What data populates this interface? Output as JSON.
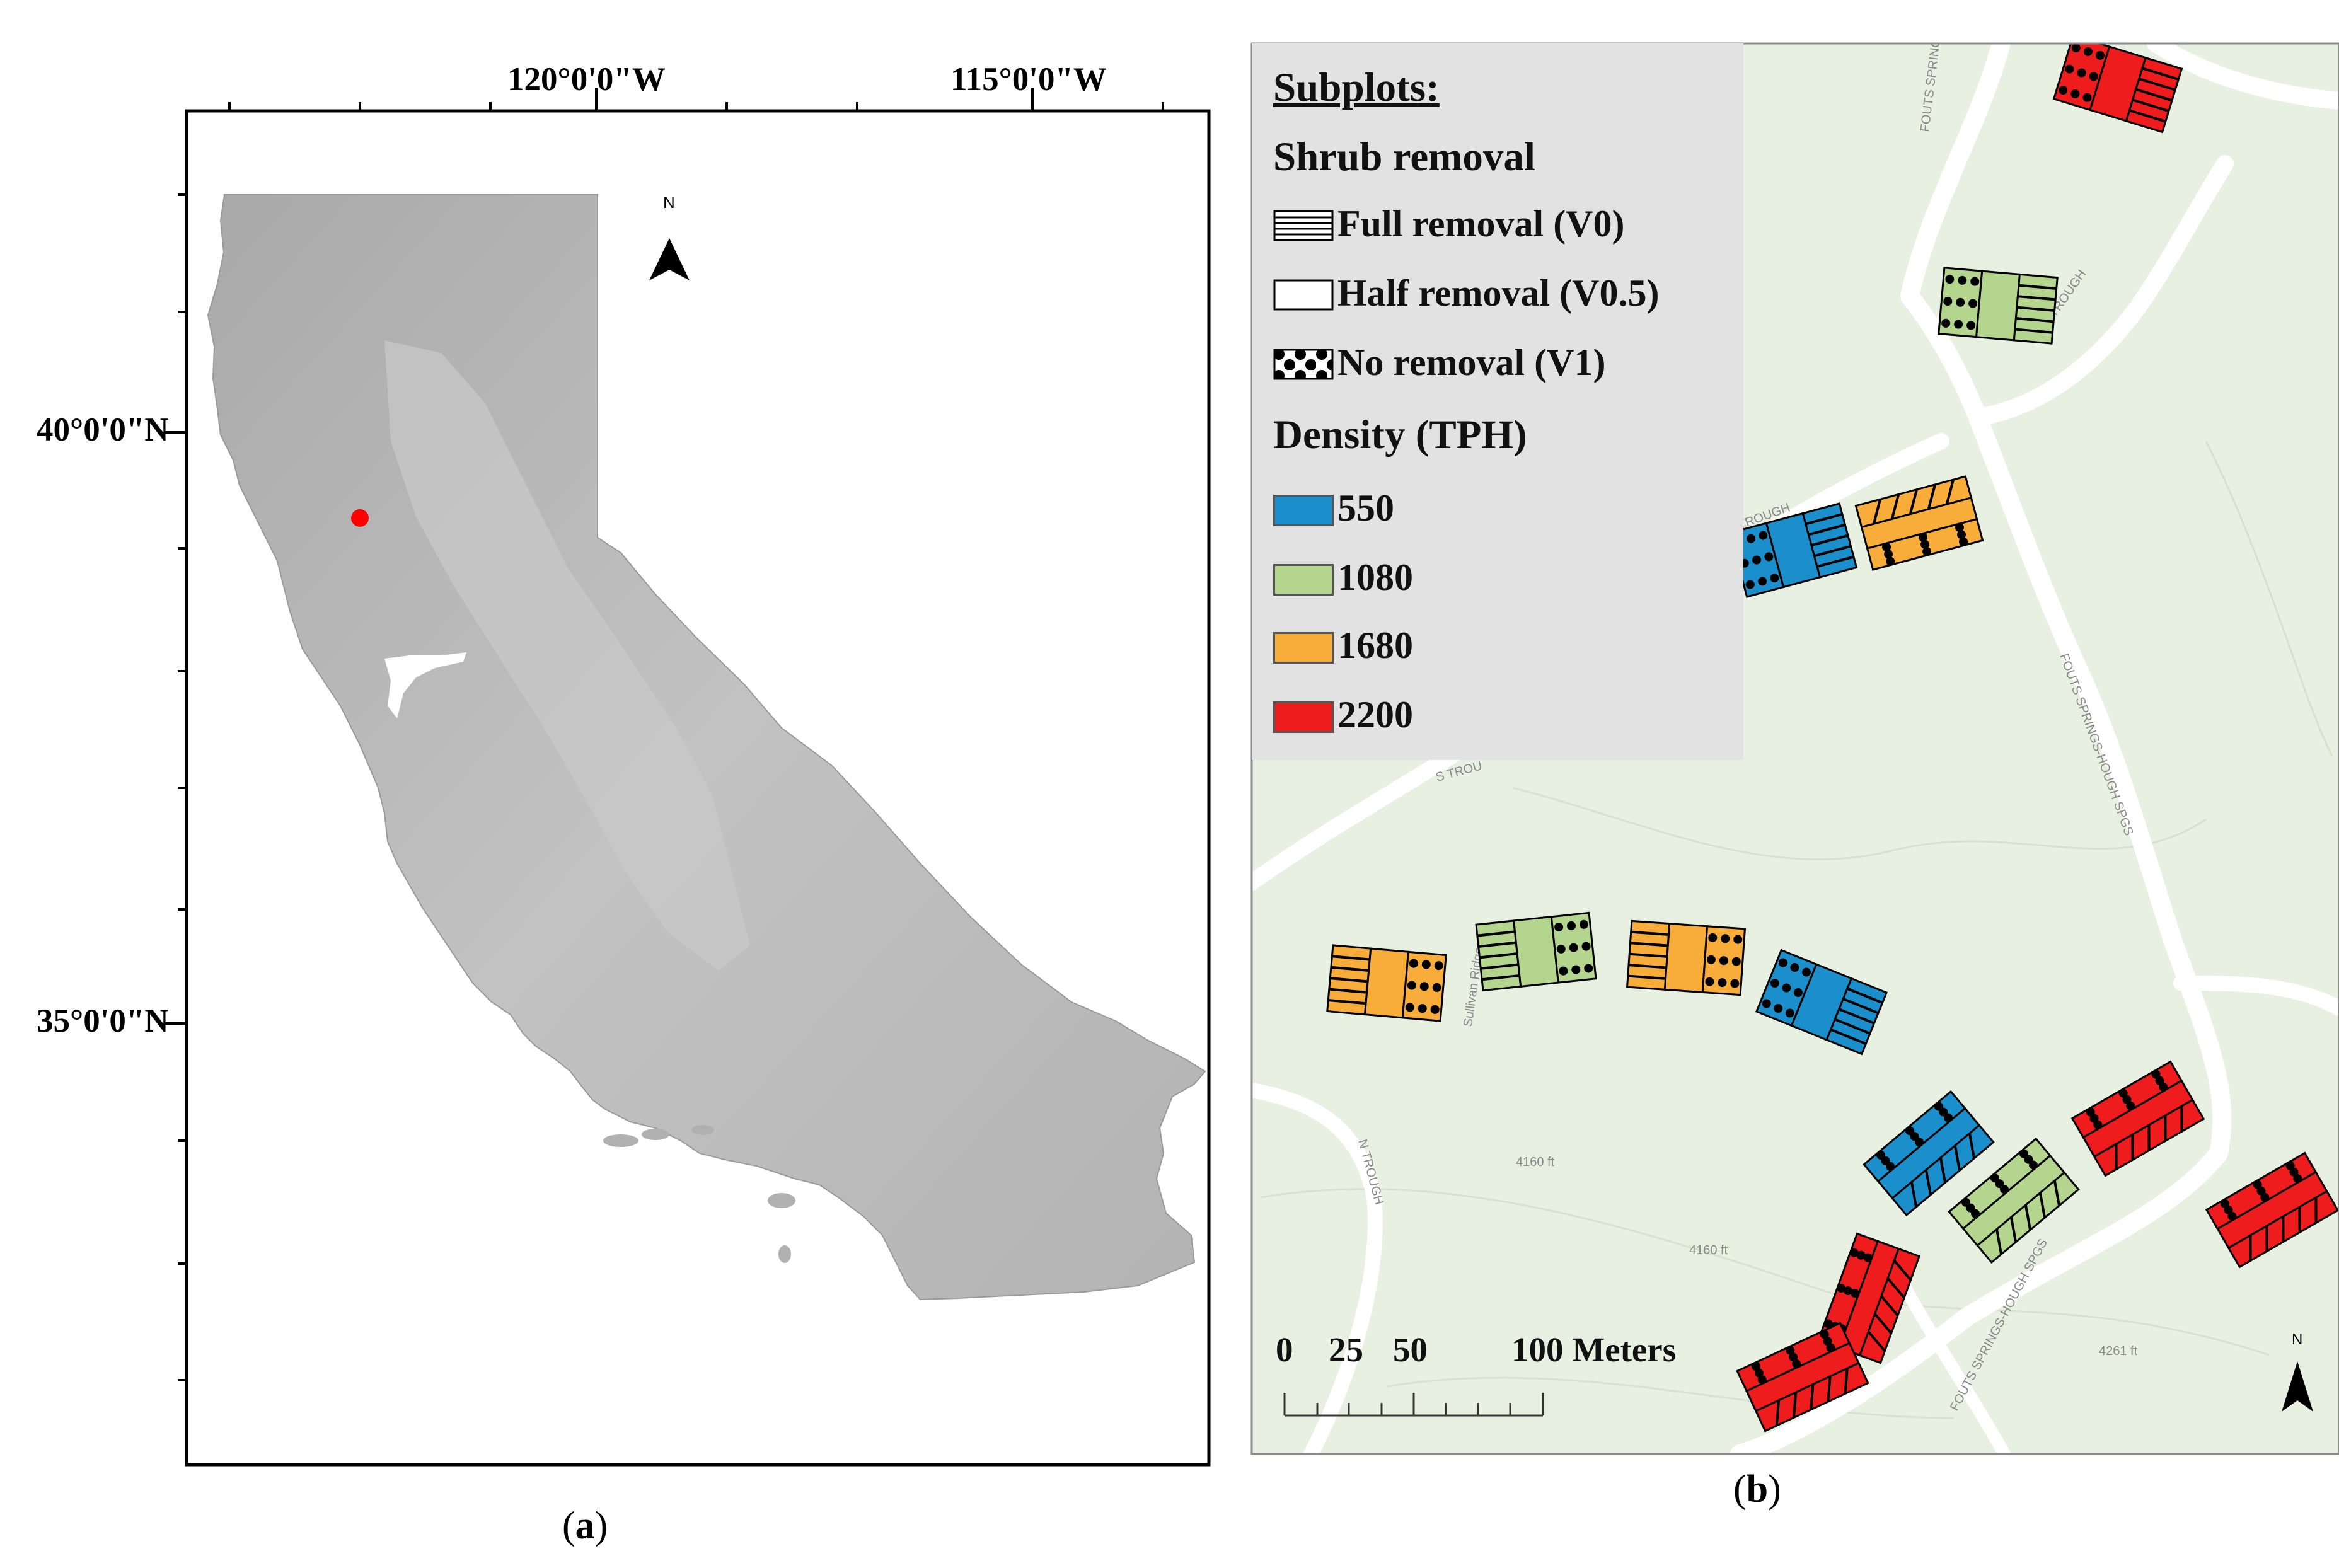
{
  "panel_a": {
    "caption_open": "(",
    "caption_letter": "a",
    "caption_close": ")",
    "longitude_labels": [
      "120°0'0\"W",
      "115°0'0\"W"
    ],
    "latitude_labels": [
      "40°0'0\"N",
      "35°0'0\"N"
    ],
    "north_label": "N",
    "site_marker_color": "#ff0000",
    "map_description_icon": "california-hillshade"
  },
  "panel_b": {
    "caption_open": "(",
    "caption_letter": "b",
    "caption_close": ")",
    "legend": {
      "title": "Subplots:",
      "shrub_heading": "Shrub removal",
      "shrub_items": [
        {
          "label": "Full removal (V0)",
          "pattern": "horizontal-lines"
        },
        {
          "label": "Half removal (V0.5)",
          "pattern": "blank"
        },
        {
          "label": "No removal (V1)",
          "pattern": "dots"
        }
      ],
      "density_heading": "Density (TPH)",
      "density_items": [
        {
          "label": "550",
          "color": "#1a8fcb"
        },
        {
          "label": "1080",
          "color": "#b4d58e"
        },
        {
          "label": "1680",
          "color": "#f8ad3b"
        },
        {
          "label": "2200",
          "color": "#ee1c1c"
        }
      ]
    },
    "road_labels": [
      "FOUTS SPRINGS-HOUGH SPGS",
      "S TROUGH",
      "TROUGH",
      "S TROU",
      "Sullivan Ridge",
      "N TROUGH",
      "FOUTS SPRINGS-HOUGH SPGS",
      "FOUTS SPRINGS-HOUGH SPGS"
    ],
    "contour_labels": [
      "4160 ft",
      "4160 ft",
      "4261 ft"
    ],
    "scale_bar": {
      "ticks": [
        "0",
        "25",
        "50",
        "100 Meters"
      ]
    },
    "north_label": "N"
  }
}
